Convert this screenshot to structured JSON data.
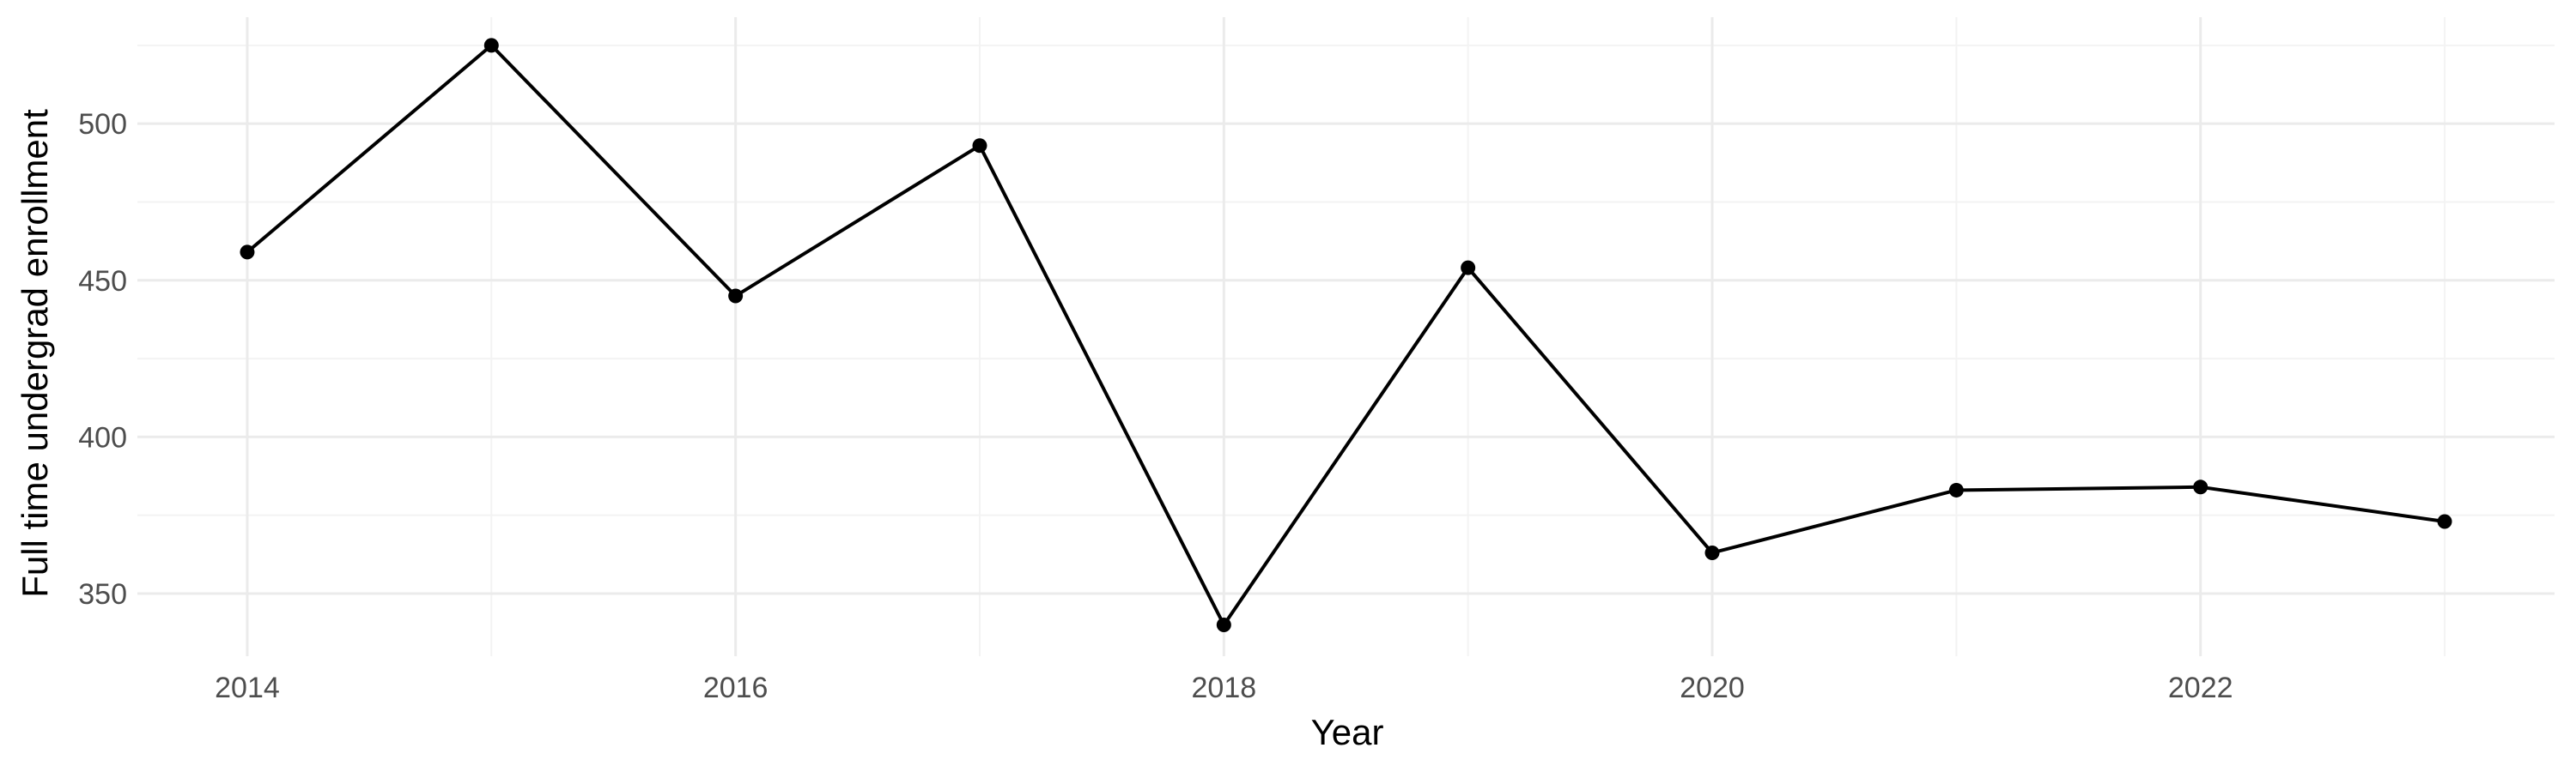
{
  "chart_data": {
    "type": "line",
    "x": [
      2014,
      2015,
      2016,
      2017,
      2018,
      2019,
      2020,
      2021,
      2022,
      2023
    ],
    "series": [
      {
        "values": [
          459,
          525,
          445,
          493,
          340,
          454,
          363,
          383,
          384,
          373
        ]
      }
    ],
    "xlabel": "Year",
    "ylabel": "Full time undergrad enrollment",
    "xlim": [
      2013.55,
      2023.45
    ],
    "ylim": [
      330,
      534
    ],
    "x_ticks": [
      2014,
      2016,
      2018,
      2020,
      2022
    ],
    "x_tick_labels": [
      "2014",
      "2016",
      "2018",
      "2020",
      "2022"
    ],
    "y_ticks": [
      350,
      400,
      450,
      500
    ],
    "y_tick_labels": [
      "350",
      "400",
      "450",
      "500"
    ],
    "grid": true,
    "line_color": "#000000",
    "grid_color": "#ebebeb"
  }
}
